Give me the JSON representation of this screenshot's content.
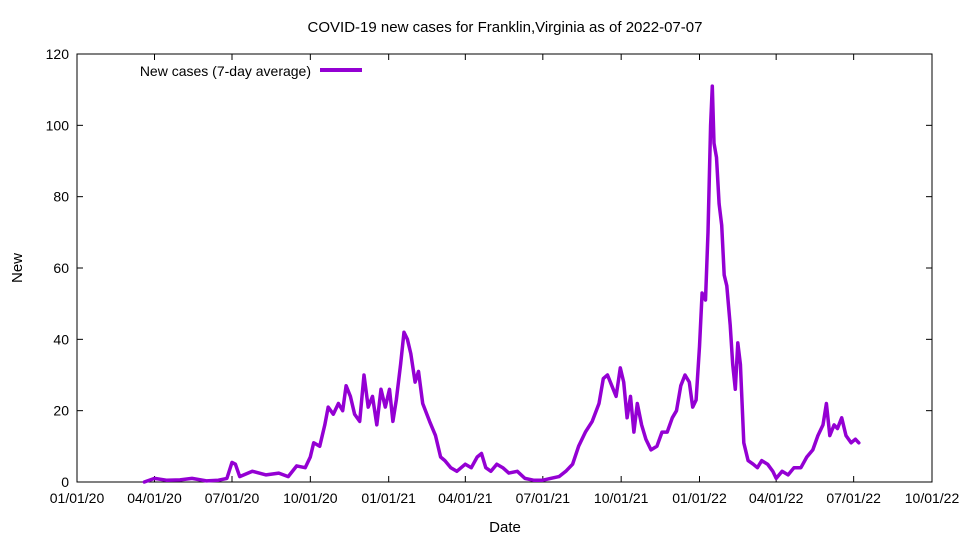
{
  "chart_data": {
    "type": "line",
    "title": "COVID-19 new cases for Franklin,Virginia as of 2022-07-07",
    "xlabel": "Date",
    "ylabel": "New",
    "xlim": [
      "2020-01-01",
      "2022-10-01"
    ],
    "ylim": [
      0,
      120
    ],
    "x_ticks": [
      "01/01/20",
      "04/01/20",
      "07/01/20",
      "10/01/20",
      "01/01/21",
      "04/01/21",
      "07/01/21",
      "10/01/21",
      "01/01/22",
      "04/01/22",
      "07/01/22",
      "10/01/22"
    ],
    "y_ticks": [
      "0",
      "20",
      "40",
      "60",
      "80",
      "100",
      "120"
    ],
    "grid": false,
    "legend_position": "top-left",
    "series": [
      {
        "name": "New cases (7-day average)",
        "color": "#9400d3",
        "points": [
          [
            "2020-03-20",
            0
          ],
          [
            "2020-04-01",
            1
          ],
          [
            "2020-04-15",
            0.5
          ],
          [
            "2020-05-01",
            0.6
          ],
          [
            "2020-05-15",
            1
          ],
          [
            "2020-06-01",
            0.3
          ],
          [
            "2020-06-15",
            0.5
          ],
          [
            "2020-06-25",
            1
          ],
          [
            "2020-07-01",
            5.5
          ],
          [
            "2020-07-05",
            5
          ],
          [
            "2020-07-10",
            1.5
          ],
          [
            "2020-07-25",
            3
          ],
          [
            "2020-08-10",
            2
          ],
          [
            "2020-08-25",
            2.5
          ],
          [
            "2020-09-05",
            1.5
          ],
          [
            "2020-09-15",
            4.5
          ],
          [
            "2020-09-25",
            4
          ],
          [
            "2020-10-01",
            7
          ],
          [
            "2020-10-05",
            11
          ],
          [
            "2020-10-12",
            10
          ],
          [
            "2020-10-18",
            16
          ],
          [
            "2020-10-22",
            21
          ],
          [
            "2020-10-28",
            19
          ],
          [
            "2020-11-03",
            22
          ],
          [
            "2020-11-08",
            20
          ],
          [
            "2020-11-12",
            27
          ],
          [
            "2020-11-17",
            24
          ],
          [
            "2020-11-22",
            19
          ],
          [
            "2020-11-28",
            17
          ],
          [
            "2020-12-03",
            30
          ],
          [
            "2020-12-08",
            21
          ],
          [
            "2020-12-13",
            24
          ],
          [
            "2020-12-18",
            16
          ],
          [
            "2020-12-23",
            26
          ],
          [
            "2020-12-28",
            21
          ],
          [
            "2021-01-02",
            26
          ],
          [
            "2021-01-06",
            17
          ],
          [
            "2021-01-10",
            23
          ],
          [
            "2021-01-15",
            33
          ],
          [
            "2021-01-19",
            42
          ],
          [
            "2021-01-23",
            40
          ],
          [
            "2021-01-27",
            36
          ],
          [
            "2021-02-01",
            28
          ],
          [
            "2021-02-05",
            31
          ],
          [
            "2021-02-10",
            22
          ],
          [
            "2021-02-18",
            17
          ],
          [
            "2021-02-25",
            13
          ],
          [
            "2021-03-03",
            7
          ],
          [
            "2021-03-08",
            6
          ],
          [
            "2021-03-15",
            4
          ],
          [
            "2021-03-22",
            3
          ],
          [
            "2021-04-01",
            5
          ],
          [
            "2021-04-08",
            4
          ],
          [
            "2021-04-15",
            7
          ],
          [
            "2021-04-20",
            8
          ],
          [
            "2021-04-25",
            4
          ],
          [
            "2021-05-01",
            3
          ],
          [
            "2021-05-08",
            5
          ],
          [
            "2021-05-15",
            4
          ],
          [
            "2021-05-22",
            2.5
          ],
          [
            "2021-06-01",
            3
          ],
          [
            "2021-06-10",
            1
          ],
          [
            "2021-06-20",
            0.5
          ],
          [
            "2021-07-01",
            0.5
          ],
          [
            "2021-07-10",
            1
          ],
          [
            "2021-07-20",
            1.5
          ],
          [
            "2021-07-28",
            3
          ],
          [
            "2021-08-05",
            5
          ],
          [
            "2021-08-12",
            10
          ],
          [
            "2021-08-20",
            14
          ],
          [
            "2021-08-28",
            17
          ],
          [
            "2021-09-05",
            22
          ],
          [
            "2021-09-10",
            29
          ],
          [
            "2021-09-15",
            30
          ],
          [
            "2021-09-20",
            27
          ],
          [
            "2021-09-25",
            24
          ],
          [
            "2021-09-30",
            32
          ],
          [
            "2021-10-04",
            28
          ],
          [
            "2021-10-08",
            18
          ],
          [
            "2021-10-12",
            24
          ],
          [
            "2021-10-16",
            14
          ],
          [
            "2021-10-20",
            22
          ],
          [
            "2021-10-25",
            16
          ],
          [
            "2021-10-30",
            12
          ],
          [
            "2021-11-05",
            9
          ],
          [
            "2021-11-12",
            10
          ],
          [
            "2021-11-18",
            14
          ],
          [
            "2021-11-24",
            14
          ],
          [
            "2021-11-30",
            18
          ],
          [
            "2021-12-05",
            20
          ],
          [
            "2021-12-10",
            27
          ],
          [
            "2021-12-15",
            30
          ],
          [
            "2021-12-20",
            28
          ],
          [
            "2021-12-24",
            21
          ],
          [
            "2021-12-28",
            23
          ],
          [
            "2022-01-01",
            38
          ],
          [
            "2022-01-04",
            53
          ],
          [
            "2022-01-08",
            51
          ],
          [
            "2022-01-11",
            70
          ],
          [
            "2022-01-14",
            100
          ],
          [
            "2022-01-16",
            111
          ],
          [
            "2022-01-18",
            95
          ],
          [
            "2022-01-21",
            91
          ],
          [
            "2022-01-24",
            78
          ],
          [
            "2022-01-27",
            72
          ],
          [
            "2022-01-30",
            58
          ],
          [
            "2022-02-02",
            55
          ],
          [
            "2022-02-06",
            44
          ],
          [
            "2022-02-09",
            33
          ],
          [
            "2022-02-12",
            26
          ],
          [
            "2022-02-15",
            39
          ],
          [
            "2022-02-18",
            33
          ],
          [
            "2022-02-22",
            11
          ],
          [
            "2022-02-27",
            6
          ],
          [
            "2022-03-05",
            5
          ],
          [
            "2022-03-10",
            4
          ],
          [
            "2022-03-15",
            6
          ],
          [
            "2022-03-22",
            5
          ],
          [
            "2022-03-28",
            3
          ],
          [
            "2022-04-01",
            1
          ],
          [
            "2022-04-08",
            3
          ],
          [
            "2022-04-15",
            2
          ],
          [
            "2022-04-22",
            4
          ],
          [
            "2022-04-30",
            4
          ],
          [
            "2022-05-07",
            7
          ],
          [
            "2022-05-14",
            9
          ],
          [
            "2022-05-20",
            13
          ],
          [
            "2022-05-26",
            16
          ],
          [
            "2022-05-30",
            22
          ],
          [
            "2022-06-03",
            13
          ],
          [
            "2022-06-08",
            16
          ],
          [
            "2022-06-12",
            15
          ],
          [
            "2022-06-17",
            18
          ],
          [
            "2022-06-22",
            13
          ],
          [
            "2022-06-28",
            11
          ],
          [
            "2022-07-03",
            12
          ],
          [
            "2022-07-07",
            11
          ]
        ]
      }
    ]
  }
}
